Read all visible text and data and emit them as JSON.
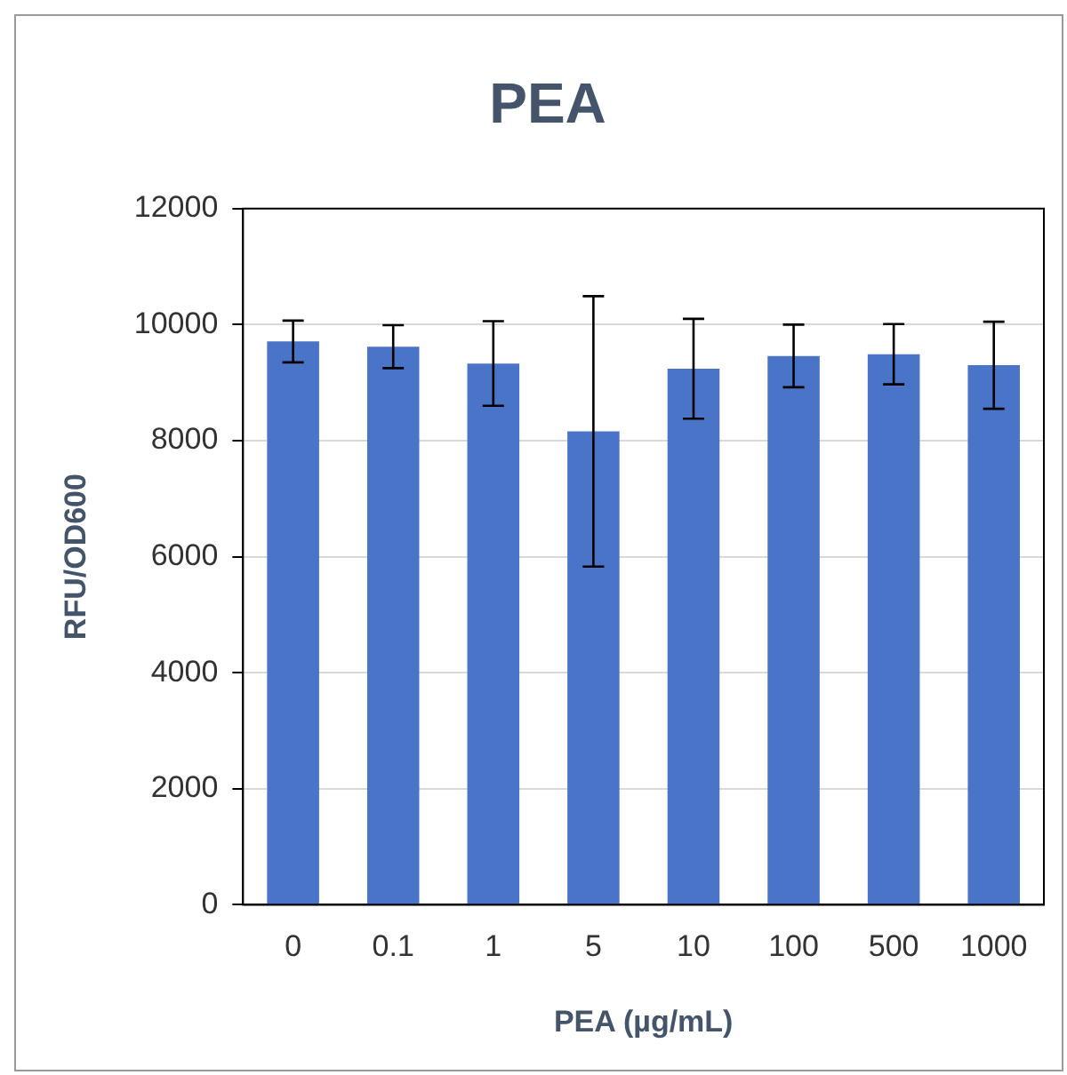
{
  "chart_data": {
    "type": "bar",
    "title": "PEA",
    "xlabel": "PEA (µg/mL)",
    "ylabel": "RFU/OD600",
    "categories": [
      "0",
      "0.1",
      "1",
      "5",
      "10",
      "100",
      "500",
      "1000"
    ],
    "values": [
      9710,
      9620,
      9330,
      8160,
      9240,
      9460,
      9490,
      9300
    ],
    "errors": [
      360,
      370,
      730,
      2330,
      860,
      540,
      520,
      750
    ],
    "color": "#4a74c8",
    "ylim": [
      0,
      12000
    ],
    "yticks": [
      0,
      2000,
      4000,
      6000,
      8000,
      10000,
      12000
    ],
    "grid": "y",
    "legend": false
  }
}
